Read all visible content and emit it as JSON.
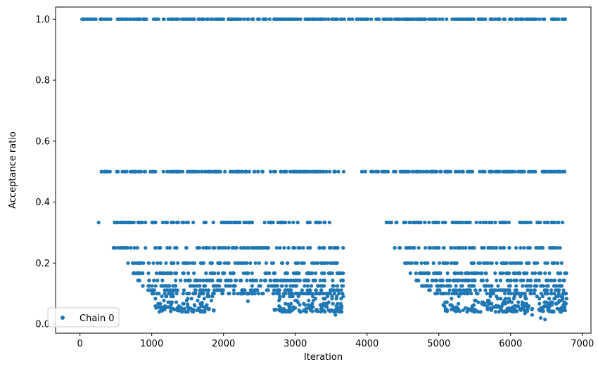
{
  "chart_data": {
    "type": "scatter",
    "title": "",
    "xlabel": "Iteration",
    "ylabel": "Acceptance ratio",
    "xlim": [
      -340,
      7120
    ],
    "ylim": [
      -0.03,
      1.04
    ],
    "xticks": [
      0,
      1000,
      2000,
      3000,
      4000,
      5000,
      6000,
      7000
    ],
    "xtick_labels": [
      "0",
      "1000",
      "2000",
      "3000",
      "4000",
      "5000",
      "6000",
      "7000"
    ],
    "yticks": [
      0.0,
      0.2,
      0.4,
      0.6,
      0.8,
      1.0
    ],
    "ytick_labels": [
      "0.0",
      "0.2",
      "0.4",
      "0.6",
      "0.8",
      "1.0"
    ],
    "grid": false,
    "legend": {
      "placement": "lower-left",
      "entries": [
        "Chain 0"
      ]
    },
    "series": [
      {
        "name": "Chain 0",
        "color": "#1f77b4",
        "marker": "circle",
        "x_range": [
          0,
          6780
        ],
        "levels": [
          {
            "y": 1.0,
            "ranges": [
              [
                0,
                6780
              ]
            ]
          },
          {
            "y": 0.5,
            "ranges": [
              [
                280,
                3680
              ],
              [
                3900,
                6780
              ]
            ]
          },
          {
            "y": 0.3333,
            "ranges": [
              [
                480,
                3680
              ],
              [
                4220,
                6780
              ]
            ]
          },
          {
            "y": 0.25,
            "ranges": [
              [
                440,
                3680
              ],
              [
                4380,
                6780
              ]
            ]
          },
          {
            "y": 0.2,
            "ranges": [
              [
                580,
                3680
              ],
              [
                4520,
                6780
              ]
            ]
          },
          {
            "y": 0.1667,
            "ranges": [
              [
                700,
                3680
              ],
              [
                4600,
                6780
              ]
            ]
          },
          {
            "y": 0.1429,
            "ranges": [
              [
                760,
                3680
              ],
              [
                4680,
                6780
              ]
            ]
          },
          {
            "y": 0.125,
            "ranges": [
              [
                840,
                3680
              ],
              [
                4760,
                6780
              ]
            ]
          },
          {
            "y": 0.1111,
            "ranges": [
              [
                900,
                3680
              ],
              [
                4840,
                6780
              ]
            ]
          },
          {
            "y": 0.1,
            "ranges": [
              [
                960,
                3680
              ],
              [
                4900,
                6780
              ]
            ]
          }
        ],
        "scattered_points": [
          [
            260,
            0.333
          ],
          [
            1360,
            0.045
          ],
          [
            1300,
            0.05
          ],
          [
            1720,
            0.04
          ],
          [
            1800,
            0.05
          ],
          [
            2340,
            0.075
          ],
          [
            3560,
            0.03
          ],
          [
            3620,
            0.04
          ],
          [
            3150,
            0.05
          ],
          [
            2800,
            0.05
          ],
          [
            6420,
            0.02
          ],
          [
            6480,
            0.015
          ],
          [
            6300,
            0.03
          ],
          [
            6200,
            0.035
          ],
          [
            6600,
            0.04
          ],
          [
            6760,
            0.045
          ],
          [
            6060,
            0.06
          ],
          [
            5900,
            0.07
          ],
          [
            5800,
            0.06
          ],
          [
            5700,
            0.075
          ],
          [
            1600,
            0.06
          ],
          [
            1500,
            0.065
          ],
          [
            1700,
            0.07
          ],
          [
            2900,
            0.065
          ],
          [
            3400,
            0.06
          ]
        ]
      }
    ]
  }
}
